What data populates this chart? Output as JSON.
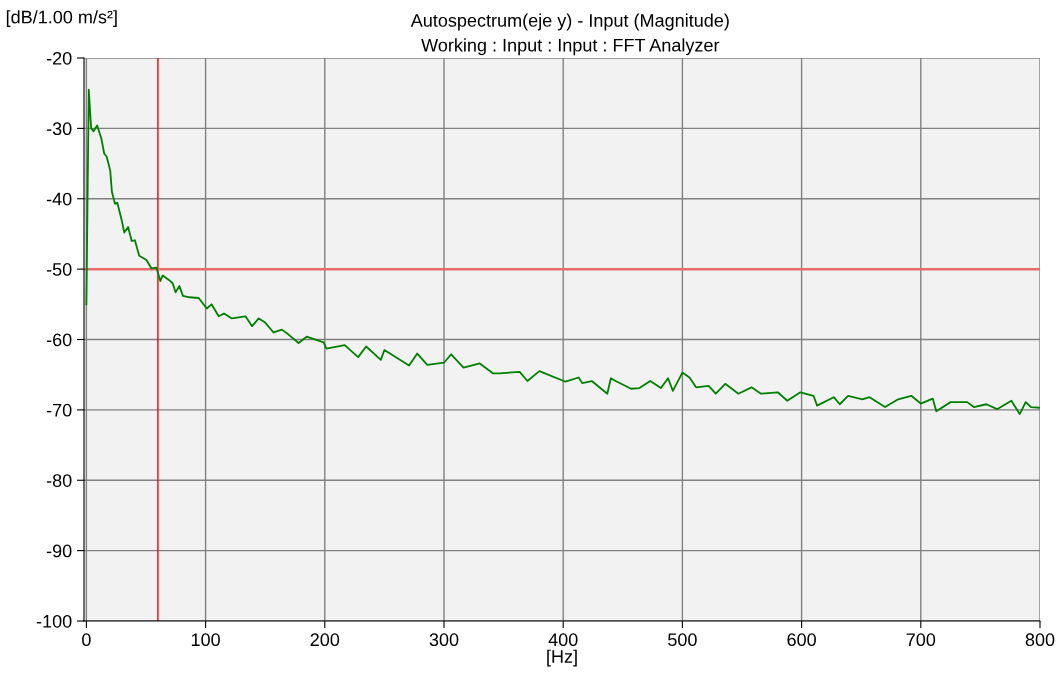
{
  "chart_data": {
    "type": "line",
    "title": "Autospectrum(eje y) - Input (Magnitude)",
    "subtitle": "Working : Input : Input : FFT Analyzer",
    "xlabel": "[Hz]",
    "ylabel": "[dB/1.00 m/s²]",
    "xlim": [
      -2,
      800
    ],
    "ylim": [
      -100,
      -20
    ],
    "xticks": [
      0,
      100,
      200,
      300,
      400,
      500,
      600,
      700,
      800
    ],
    "yticks": [
      -100,
      -90,
      -80,
      -70,
      -60,
      -50,
      -40,
      -30,
      -20
    ],
    "grid": true,
    "legend": false,
    "marker": "none",
    "line_style": "solid",
    "ref_lines": [
      {
        "axis": "x",
        "value": 60,
        "label": null,
        "color": "#ff0000"
      },
      {
        "axis": "y",
        "value": -50,
        "label": null,
        "color": "#e86a6a"
      }
    ],
    "series": [
      {
        "color": "#008000",
        "x": [
          0,
          2,
          4,
          6,
          9,
          12.5,
          15,
          17,
          20,
          21.4,
          24,
          26,
          29.7,
          31.8,
          35,
          38,
          40.7,
          44.3,
          50.4,
          54.6,
          58.8,
          62,
          64,
          70.4,
          72.4,
          74.8,
          78,
          81,
          86.4,
          94.2,
          101,
          105,
          111,
          115.5,
          122,
          133.5,
          139,
          144.6,
          150,
          157,
          164,
          169.6,
          178,
          184.8,
          199,
          201.4,
          216.7,
          228,
          234.7,
          247,
          250,
          270.7,
          277.6,
          286,
          300,
          306,
          316.4,
          330,
          341,
          346.7,
          363.5,
          370,
          380,
          402,
          413,
          416,
          424,
          437,
          440,
          444,
          457,
          464,
          473,
          482,
          488,
          492,
          500,
          506,
          511.5,
          522,
          528,
          536,
          547,
          558,
          566,
          580,
          588,
          599,
          610,
          613,
          627,
          632,
          639,
          651,
          657,
          670,
          681,
          692,
          700,
          710,
          713,
          725,
          739,
          744.5,
          755,
          764,
          776,
          783,
          788,
          792.5,
          800
        ],
        "values": [
          -55,
          -24.5,
          -30,
          -30.4,
          -29.6,
          -31.4,
          -33.6,
          -34,
          -36,
          -39,
          -40.7,
          -40.6,
          -43.1,
          -44.8,
          -44,
          -46,
          -45.9,
          -48.1,
          -48.7,
          -49.9,
          -49.8,
          -51.7,
          -50.9,
          -51.7,
          -52,
          -53.3,
          -52.4,
          -53.8,
          -54,
          -54.1,
          -55.6,
          -55,
          -56.7,
          -56.3,
          -57,
          -56.7,
          -58.1,
          -57,
          -57.6,
          -59,
          -58.6,
          -59.3,
          -60.5,
          -59.6,
          -60.4,
          -61.3,
          -60.8,
          -62.5,
          -61,
          -62.9,
          -61.5,
          -63.7,
          -62,
          -63.6,
          -63.3,
          -62.1,
          -64,
          -63.4,
          -64.8,
          -64.8,
          -64.6,
          -65.9,
          -64.5,
          -66,
          -65.4,
          -66.2,
          -65.9,
          -67.7,
          -65.5,
          -65.9,
          -67,
          -66.9,
          -65.9,
          -66.9,
          -65.5,
          -67.3,
          -64.7,
          -65.4,
          -66.8,
          -66.6,
          -67.7,
          -66.3,
          -67.7,
          -66.8,
          -67.7,
          -67.5,
          -68.7,
          -67.5,
          -68,
          -69.4,
          -68.2,
          -69.2,
          -68,
          -68.5,
          -68.2,
          -69.6,
          -68.5,
          -68,
          -69.1,
          -68.4,
          -70.2,
          -68.9,
          -68.9,
          -69.6,
          -69.2,
          -69.9,
          -68.7,
          -70.6,
          -68.9,
          -69.6,
          -69.7
        ]
      }
    ]
  }
}
